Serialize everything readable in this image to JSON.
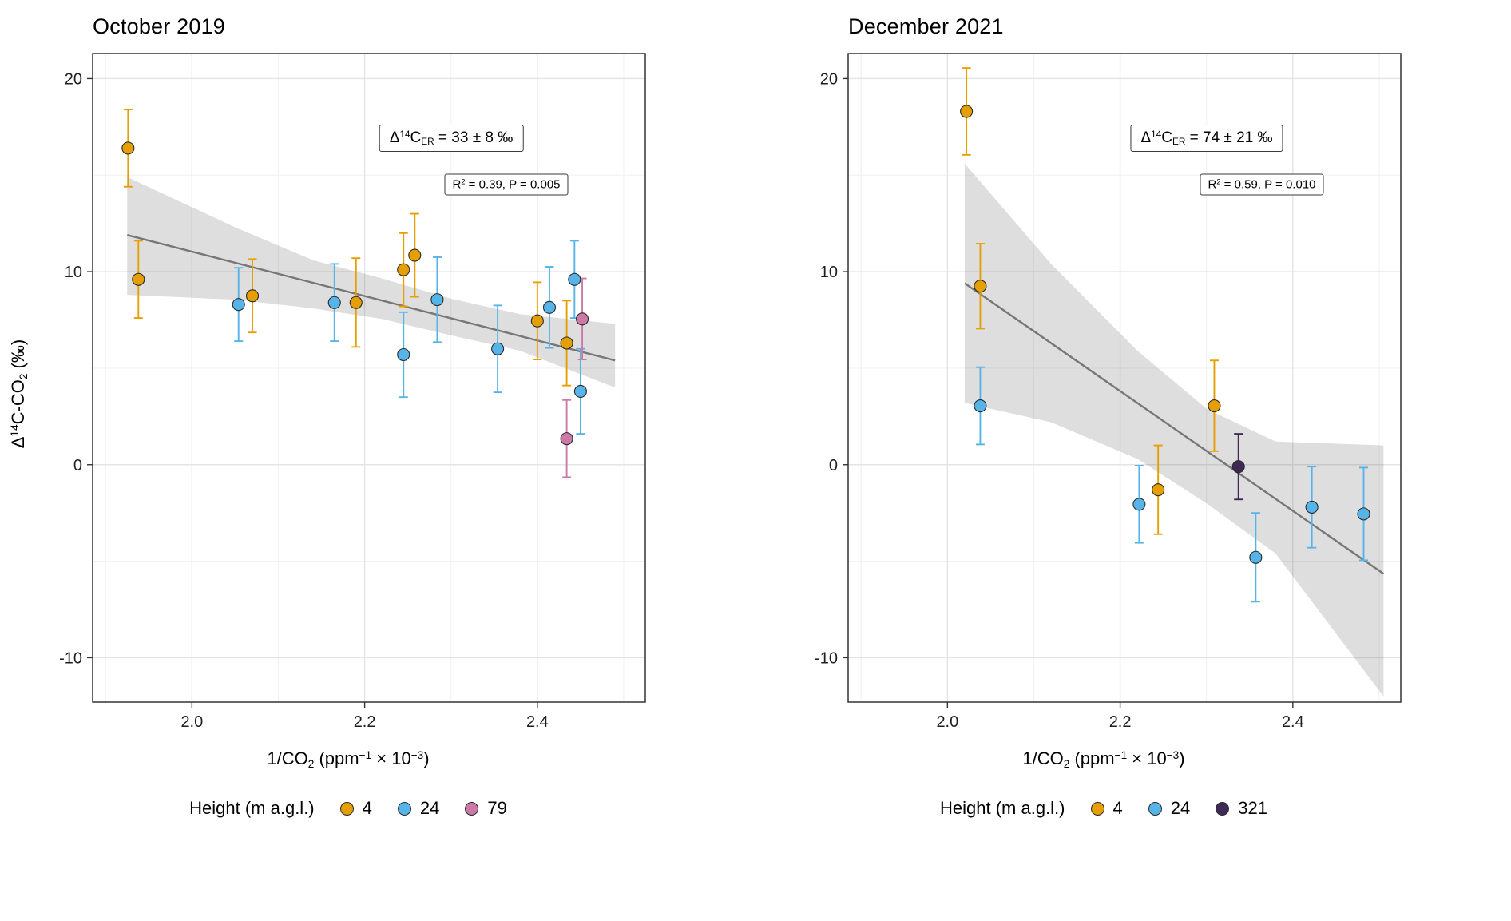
{
  "legend_title": "Height (m a.g.l.)",
  "axis": {
    "y_parts": {
      "d": "Δ",
      "sup": "14",
      "mid": "C-CO",
      "sub": "2",
      "unit": " (‰)"
    },
    "x_parts": {
      "a": "1/CO",
      "sub": "2",
      "b": " (ppm",
      "sup1": "−1",
      "c": " × 10",
      "sup2": "−3",
      "d": ")"
    }
  },
  "chart_data": [
    {
      "type": "scatter",
      "title": "October 2019",
      "xlabel": "1/CO2 (ppm-1 x 10-3)",
      "ylabel": "Δ14C-CO2 (‰)",
      "xlim": [
        1.885,
        2.525
      ],
      "ylim": [
        -12.3,
        21.3
      ],
      "xticks": [
        2.0,
        2.2,
        2.4
      ],
      "yticks": [
        -10,
        0,
        10,
        20
      ],
      "xtick_labels": [
        "2.0",
        "2.2",
        "2.4"
      ],
      "ytick_labels": [
        "-10",
        "0",
        "10",
        "20"
      ],
      "annotation_parts": {
        "d": "Δ",
        "sup": "14",
        "el": "C",
        "sub": "ER",
        "text": " = 33 ± 8 ‰"
      },
      "stats_parts": {
        "r": "R",
        "sup": "2",
        "text": " = 0.39, P = 0.005"
      },
      "regression": {
        "line_color": "#777777",
        "band_color": "rgba(70,70,70,0.18)",
        "line": [
          [
            1.925,
            11.9
          ],
          [
            2.49,
            5.4
          ]
        ],
        "band": [
          [
            1.925,
            8.8,
            14.9
          ],
          [
            2.05,
            8.55,
            12.3
          ],
          [
            2.14,
            8.1,
            10.6
          ],
          [
            2.22,
            7.55,
            9.65
          ],
          [
            2.3,
            6.7,
            8.6
          ],
          [
            2.38,
            5.9,
            7.8
          ],
          [
            2.49,
            4.0,
            7.3
          ]
        ]
      },
      "series": [
        {
          "name": "4",
          "color": "#E69F00",
          "points": [
            [
              1.926,
              16.4,
              2.0
            ],
            [
              1.938,
              9.6,
              2.0
            ],
            [
              2.07,
              8.75,
              1.9
            ],
            [
              2.19,
              8.4,
              2.3
            ],
            [
              2.245,
              10.1,
              1.9
            ],
            [
              2.258,
              10.85,
              2.15
            ],
            [
              2.4,
              7.45,
              2.0
            ],
            [
              2.434,
              6.3,
              2.2
            ]
          ]
        },
        {
          "name": "24",
          "color": "#56B4E9",
          "points": [
            [
              2.054,
              8.3,
              1.9
            ],
            [
              2.165,
              8.4,
              2.0
            ],
            [
              2.245,
              5.7,
              2.2
            ],
            [
              2.284,
              8.55,
              2.2
            ],
            [
              2.354,
              6.0,
              2.25
            ],
            [
              2.414,
              8.15,
              2.1
            ],
            [
              2.443,
              9.6,
              2.0
            ],
            [
              2.45,
              3.8,
              2.2
            ]
          ]
        },
        {
          "name": "79",
          "color": "#CC79A7",
          "points": [
            [
              2.434,
              1.35,
              2.0
            ],
            [
              2.452,
              7.55,
              2.1
            ]
          ]
        }
      ]
    },
    {
      "type": "scatter",
      "title": "December 2021",
      "xlabel": "1/CO2 (ppm-1 x 10-3)",
      "ylabel": "Δ14C-CO2 (‰)",
      "xlim": [
        1.885,
        2.525
      ],
      "ylim": [
        -12.3,
        21.3
      ],
      "xticks": [
        2.0,
        2.2,
        2.4
      ],
      "yticks": [
        -10,
        0,
        10,
        20
      ],
      "xtick_labels": [
        "2.0",
        "2.2",
        "2.4"
      ],
      "ytick_labels": [
        "-10",
        "0",
        "10",
        "20"
      ],
      "annotation_parts": {
        "d": "Δ",
        "sup": "14",
        "el": "C",
        "sub": "ER",
        "text": " = 74 ± 21 ‰"
      },
      "stats_parts": {
        "r": "R",
        "sup": "2",
        "text": " = 0.59, P = 0.010"
      },
      "regression": {
        "line_color": "#777777",
        "band_color": "rgba(70,70,70,0.18)",
        "line": [
          [
            2.02,
            9.4
          ],
          [
            2.505,
            -5.65
          ]
        ],
        "band": [
          [
            2.02,
            3.2,
            15.6
          ],
          [
            2.12,
            2.2,
            10.4
          ],
          [
            2.22,
            0.3,
            5.9
          ],
          [
            2.3,
            -2.0,
            2.9
          ],
          [
            2.38,
            -4.6,
            1.2
          ],
          [
            2.505,
            -12.0,
            1.0
          ]
        ]
      },
      "series": [
        {
          "name": "4",
          "color": "#E69F00",
          "points": [
            [
              2.022,
              18.3,
              2.25
            ],
            [
              2.038,
              9.25,
              2.2
            ],
            [
              2.244,
              -1.3,
              2.3
            ],
            [
              2.309,
              3.05,
              2.35
            ]
          ]
        },
        {
          "name": "24",
          "color": "#56B4E9",
          "points": [
            [
              2.038,
              3.05,
              2.0
            ],
            [
              2.222,
              -2.05,
              2.0
            ],
            [
              2.357,
              -4.8,
              2.3
            ],
            [
              2.422,
              -2.2,
              2.1
            ],
            [
              2.482,
              -2.55,
              2.4
            ]
          ]
        },
        {
          "name": "321",
          "color": "#3F2A56",
          "points": [
            [
              2.337,
              -0.1,
              1.7
            ]
          ]
        }
      ]
    }
  ]
}
